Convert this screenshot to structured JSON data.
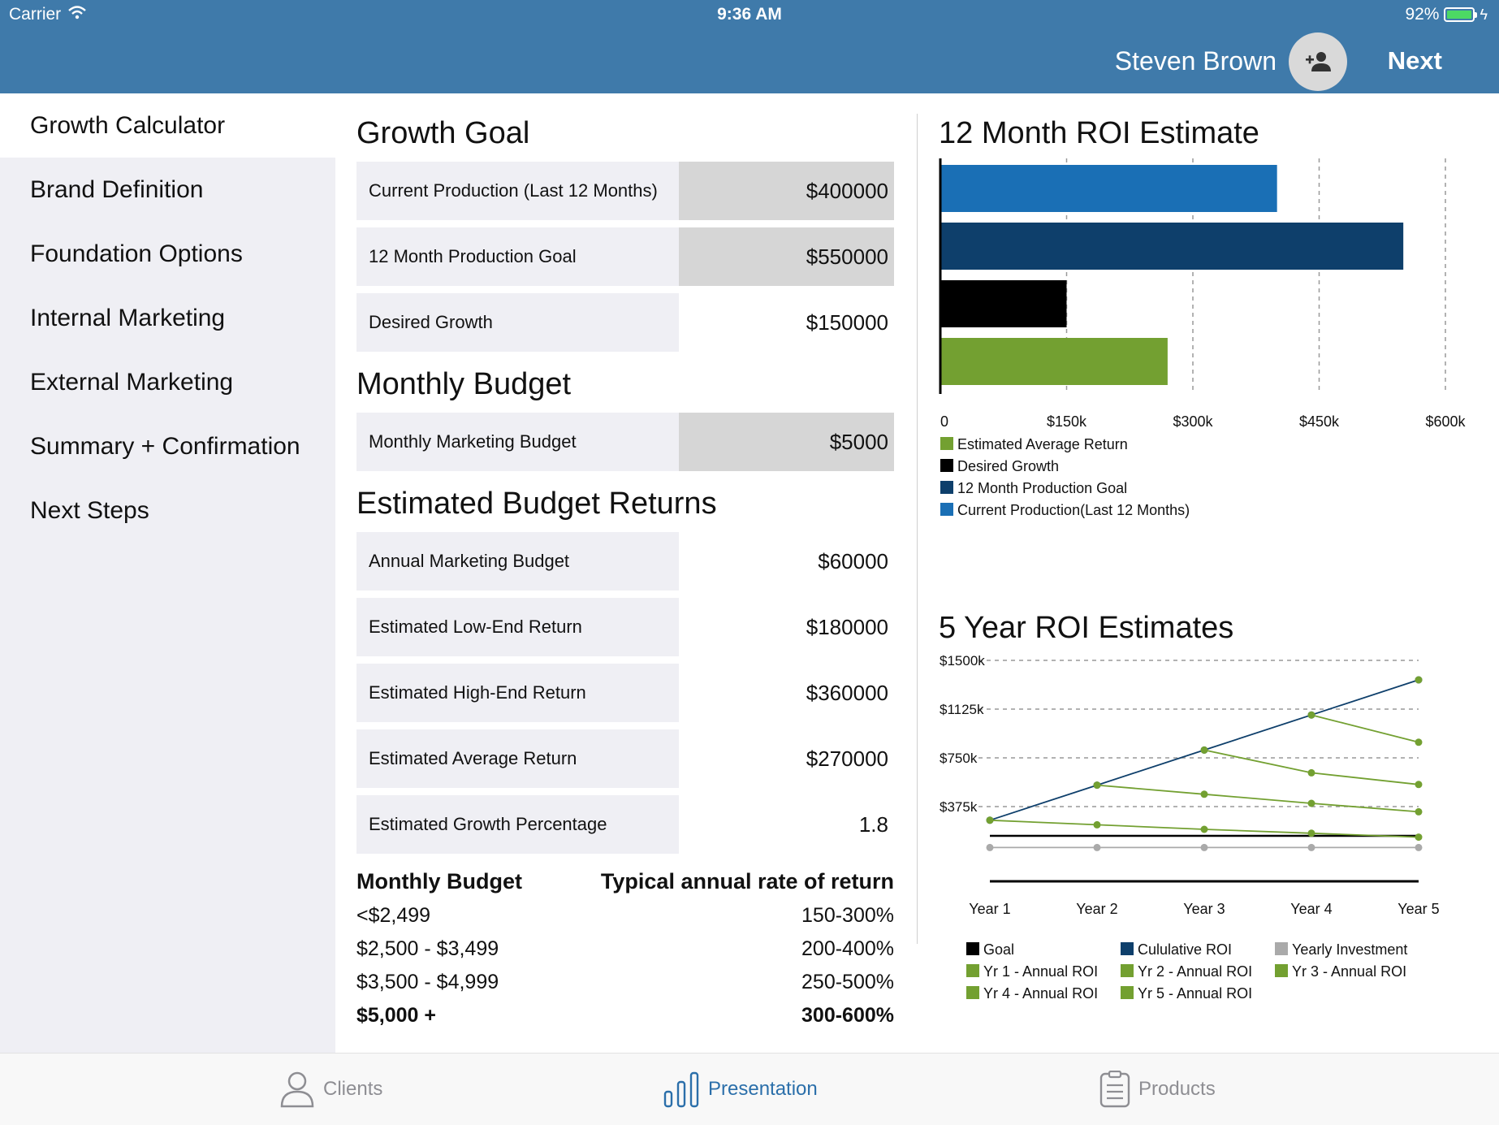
{
  "status": {
    "carrier": "Carrier",
    "time": "9:36 AM",
    "battery": "92%"
  },
  "header": {
    "user_name": "Steven Brown",
    "next_label": "Next"
  },
  "sidebar": {
    "items": [
      {
        "label": "Growth Calculator"
      },
      {
        "label": "Brand Definition"
      },
      {
        "label": "Foundation Options"
      },
      {
        "label": "Internal Marketing"
      },
      {
        "label": "External Marketing"
      },
      {
        "label": "Summary + Confirmation"
      },
      {
        "label": "Next Steps"
      }
    ]
  },
  "growth_goal": {
    "title": "Growth Goal",
    "rows": [
      {
        "label": "Current Production (Last 12 Months)",
        "value": "$400000"
      },
      {
        "label": "12 Month Production Goal",
        "value": "$550000"
      },
      {
        "label": "Desired Growth",
        "value": "$150000"
      }
    ]
  },
  "monthly_budget": {
    "title": "Monthly Budget",
    "rows": [
      {
        "label": "Monthly Marketing Budget",
        "value": "$5000"
      }
    ]
  },
  "returns": {
    "title": "Estimated Budget Returns",
    "rows": [
      {
        "label": "Annual Marketing Budget",
        "value": "$60000"
      },
      {
        "label": "Estimated Low-End Return",
        "value": "$180000"
      },
      {
        "label": "Estimated High-End Return",
        "value": "$360000"
      },
      {
        "label": "Estimated Average Return",
        "value": "$270000"
      },
      {
        "label": "Estimated Growth Percentage",
        "value": "1.8"
      }
    ]
  },
  "rate_table": {
    "col1": "Monthly Budget",
    "col2": "Typical annual rate of return",
    "rows": [
      {
        "budget": "<$2,499",
        "rate": "150-300%"
      },
      {
        "budget": "$2,500 - $3,499",
        "rate": "200-400%"
      },
      {
        "budget": "$3,500 - $4,999",
        "rate": "250-500%"
      },
      {
        "budget": "$5,000 +",
        "rate": "300-600%"
      }
    ]
  },
  "chart_data": [
    {
      "type": "bar",
      "orientation": "horizontal",
      "title": "12 Month ROI Estimate",
      "categories": [
        "Current Production(Last 12 Months)",
        "12 Month Production Goal",
        "Desired Growth",
        "Estimated Average Return"
      ],
      "values": [
        400000,
        550000,
        150000,
        270000
      ],
      "colors": [
        "#1a6fb5",
        "#0e3f6b",
        "#000000",
        "#73a031"
      ],
      "xlim": [
        0,
        600000
      ],
      "xticks": [
        0,
        150000,
        300000,
        450000,
        600000
      ],
      "xtick_labels": [
        "0",
        "$150k",
        "$300k",
        "$450k",
        "$600k"
      ],
      "grid": true,
      "legend": [
        {
          "label": "Estimated Average Return",
          "color": "#73a031"
        },
        {
          "label": "Desired Growth",
          "color": "#000000"
        },
        {
          "label": "12 Month Production Goal",
          "color": "#0e3f6b"
        },
        {
          "label": "Current Production(Last 12 Months)",
          "color": "#1a6fb5"
        }
      ],
      "legend_position": "bottom-left"
    },
    {
      "type": "line",
      "title": "5 Year ROI Estimates",
      "categories": [
        "Year 1",
        "Year 2",
        "Year 3",
        "Year 4",
        "Year 5"
      ],
      "ylim": [
        0,
        1500
      ],
      "yticks": [
        375,
        750,
        1125,
        1500
      ],
      "ytick_labels": [
        "$375k",
        "$750k",
        "$1125k",
        "$1500k"
      ],
      "grid": true,
      "series": [
        {
          "name": "Goal",
          "color": "#000000",
          "x": [
            1,
            5
          ],
          "values": [
            150,
            150
          ],
          "markers": false
        },
        {
          "name": "Cululative ROI",
          "color": "#0e3f6b",
          "x": [
            1,
            2,
            3,
            4,
            5
          ],
          "values": [
            270,
            540,
            810,
            1080,
            1350
          ],
          "markers": true
        },
        {
          "name": "Yearly Investment",
          "color": "#aaaaaa",
          "x": [
            1,
            2,
            3,
            4,
            5
          ],
          "values": [
            60,
            60,
            60,
            60,
            60
          ],
          "markers": true
        },
        {
          "name": "Yr 1 - Annual ROI",
          "color": "#73a031",
          "x": [
            1,
            2,
            3,
            4,
            5
          ],
          "values": [
            270,
            235,
            200,
            170,
            140
          ],
          "markers": true
        },
        {
          "name": "Yr 2 - Annual ROI",
          "color": "#73a031",
          "x": [
            2,
            3,
            4,
            5
          ],
          "values": [
            540,
            470,
            400,
            335
          ],
          "markers": true
        },
        {
          "name": "Yr 3 - Annual ROI",
          "color": "#73a031",
          "x": [
            3,
            4,
            5
          ],
          "values": [
            810,
            635,
            545
          ],
          "markers": true
        },
        {
          "name": "Yr 4 - Annual ROI",
          "color": "#73a031",
          "x": [
            4,
            5
          ],
          "values": [
            1080,
            870
          ],
          "markers": true
        },
        {
          "name": "Yr 5 - Annual ROI",
          "color": "#73a031",
          "x": [
            5
          ],
          "values": [
            1350
          ],
          "markers": true
        }
      ],
      "legend_position": "bottom"
    }
  ],
  "tabbar": {
    "items": [
      {
        "label": "Clients",
        "icon": "person-icon"
      },
      {
        "label": "Presentation",
        "icon": "bar-chart-icon"
      },
      {
        "label": "Products",
        "icon": "document-icon"
      }
    ],
    "active": "Presentation"
  },
  "colors": {
    "header": "#3f7aaa",
    "sidebar": "#efeff4",
    "accent": "#2b6faa"
  }
}
